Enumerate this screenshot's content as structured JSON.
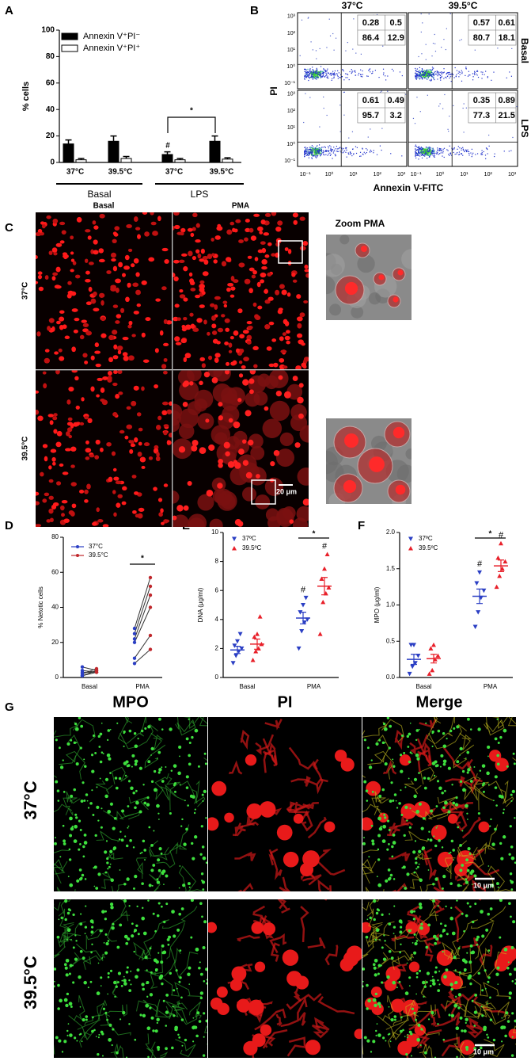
{
  "panel_labels": [
    "A",
    "B",
    "C",
    "D",
    "E",
    "F",
    "G"
  ],
  "chart_data": [
    {
      "type": "bar",
      "ylabel": "% cells",
      "categories": [
        "37°C",
        "39.5°C",
        "37°C",
        "39.5°C"
      ],
      "group_labels": [
        "Basal",
        "LPS"
      ],
      "series": [
        {
          "name": "Annexin V⁺PI⁻",
          "color": "#000000",
          "values": [
            14,
            16,
            6,
            16
          ],
          "errors": [
            3,
            4,
            2,
            4
          ]
        },
        {
          "name": "Annexin V⁺PI⁺",
          "color": "#ffffff",
          "values": [
            2,
            3,
            2,
            2.5
          ],
          "errors": [
            1,
            1.5,
            1,
            1
          ]
        }
      ],
      "ylim": [
        0,
        100
      ],
      "yticks": [
        0,
        20,
        40,
        60,
        80,
        100
      ],
      "annotations": [
        "#",
        "*"
      ],
      "legend": "upper left"
    },
    {
      "type": "paired",
      "ylabel": "% Netotic cells",
      "categories": [
        "Basal",
        "PMA"
      ],
      "series": [
        {
          "name": "37°C",
          "color": "#2b3fc4",
          "values": [
            [
              6,
              3,
              1,
              1,
              2,
              4
            ],
            [
              8,
              11,
              20,
              22,
              25,
              28
            ]
          ]
        },
        {
          "name": "39.5°C",
          "color": "#c0282d",
          "values": [
            [
              4,
              3,
              3,
              4,
              5,
              3
            ],
            [
              16,
              24,
              40,
              47,
              52,
              57
            ]
          ]
        }
      ],
      "ylim": [
        0,
        80
      ],
      "yticks": [
        0,
        20,
        40,
        60,
        80
      ],
      "annotations": [
        "*"
      ],
      "legend": "upper left"
    },
    {
      "type": "dot_mean_sem",
      "ylabel": "DNA (μg/ml)",
      "categories": [
        "Basal",
        "PMA"
      ],
      "series": [
        {
          "name": "37ºC",
          "color": "#2b3fc4",
          "values": [
            [
              1,
              1.5,
              1.8,
              2,
              2.2,
              2.5,
              3
            ],
            [
              2,
              3.2,
              3.8,
              4,
              4.5,
              5,
              5.5
            ]
          ],
          "means": [
            1.9,
            4.1
          ],
          "sems": [
            0.25,
            0.4
          ]
        },
        {
          "name": "39.5ºC",
          "color": "#e8202a",
          "values": [
            [
              1.2,
              1.8,
              2,
              2.3,
              2.8,
              3,
              4.2
            ],
            [
              3,
              5.2,
              5.8,
              6.2,
              6.8,
              7.5,
              8.5
            ]
          ],
          "means": [
            2.3,
            6.3
          ],
          "sems": [
            0.35,
            0.6
          ]
        }
      ],
      "ylim": [
        0,
        10
      ],
      "yticks": [
        0,
        2,
        4,
        6,
        8,
        10
      ],
      "annotations": [
        "*",
        "#",
        "#"
      ],
      "legend": "upper left"
    },
    {
      "type": "dot_mean_sem",
      "ylabel": "MPO (μg/ml)",
      "categories": [
        "Basal",
        "PMA"
      ],
      "series": [
        {
          "name": "37ºC",
          "color": "#2b3fc4",
          "values": [
            [
              0.05,
              0.15,
              0.2,
              0.3,
              0.45,
              0.45
            ],
            [
              0.7,
              0.9,
              1.1,
              1.2,
              1.3,
              1.45
            ]
          ],
          "means": [
            0.25,
            1.12
          ],
          "sems": [
            0.07,
            0.1
          ]
        },
        {
          "name": "39.5ºC",
          "color": "#e8202a",
          "values": [
            [
              0.05,
              0.1,
              0.25,
              0.3,
              0.4,
              0.45
            ],
            [
              1.25,
              1.4,
              1.5,
              1.6,
              1.65,
              1.85
            ]
          ],
          "means": [
            0.26,
            1.54
          ],
          "sems": [
            0.06,
            0.08
          ]
        }
      ],
      "ylim": [
        0,
        2
      ],
      "yticks": [
        {
          "value": 0,
          "label": "0.0"
        },
        0.5,
        {
          "value": 1,
          "label": "1.0"
        },
        1.5,
        {
          "value": 2,
          "label": "2.0"
        }
      ],
      "annotations": [
        "*",
        "#",
        "#"
      ],
      "legend": "upper left"
    }
  ],
  "flow_cytometry": {
    "columns": [
      "37°C",
      "39.5°C"
    ],
    "rows": [
      "Basal",
      "LPS"
    ],
    "ylabel": "PI",
    "xlabel": "Annexin V-FITC",
    "axis_ticks": [
      "10⁻¹",
      "10⁰",
      "10¹",
      "10²",
      "10³"
    ],
    "quadrants": [
      [
        [
          0.28,
          0.5,
          86.4,
          12.9
        ],
        [
          0.57,
          0.61,
          80.7,
          18.1
        ]
      ],
      [
        [
          0.61,
          0.49,
          95.7,
          3.2
        ],
        [
          0.35,
          0.89,
          77.3,
          21.5
        ]
      ]
    ]
  },
  "microscopy_c": {
    "columns": [
      "Basal",
      "PMA"
    ],
    "zoom_title": "Zoom PMA",
    "rows": [
      "37°C",
      "39.5°C"
    ],
    "scale_bar": "20 μm"
  },
  "microscopy_g": {
    "columns": [
      "MPO",
      "PI",
      "Merge"
    ],
    "rows": [
      "37°C",
      "39.5°C"
    ],
    "scale_bar": "10 μm"
  }
}
